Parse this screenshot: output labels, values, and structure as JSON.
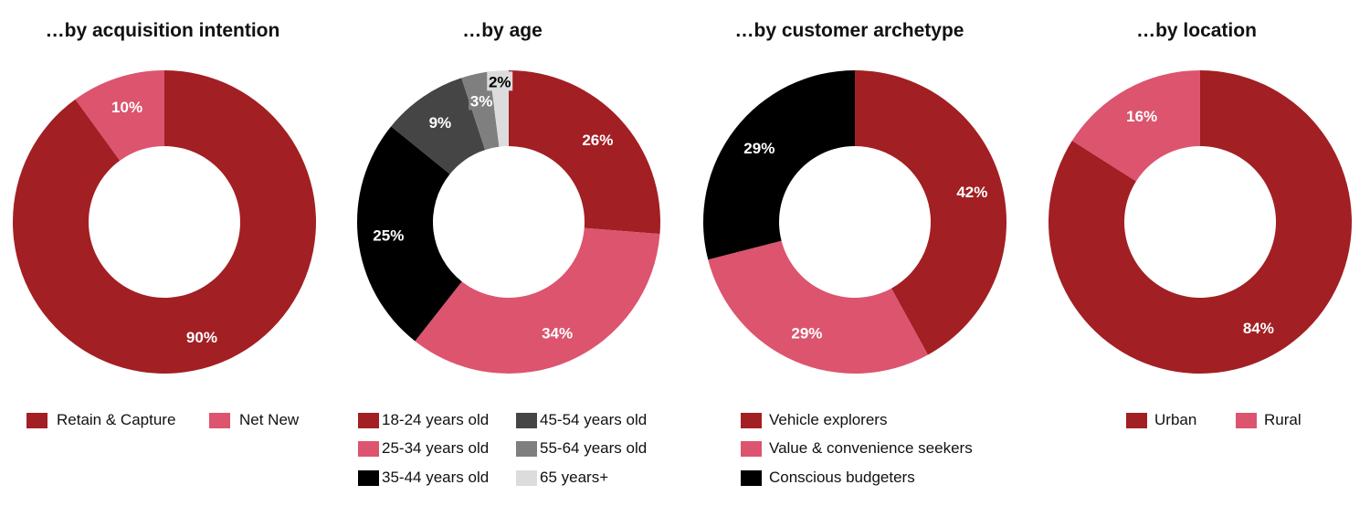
{
  "colors": {
    "dark_red": "#A21F23",
    "pink": "#DC546D",
    "black": "#000000",
    "dark_gray": "#454545",
    "mid_gray": "#7F7F7F",
    "light_gray": "#DCDCDC"
  },
  "chart_data": [
    {
      "type": "pie",
      "title": "…by acquisition intention",
      "categories": [
        "Retain & Capture",
        "Net New"
      ],
      "values": [
        90,
        10
      ],
      "labels": [
        "90%",
        "10%"
      ],
      "colors": [
        "#A21F23",
        "#DC546D"
      ],
      "legend": "bottom"
    },
    {
      "type": "pie",
      "title": "…by age",
      "categories": [
        "18-24 years old",
        "25-34 years old",
        "35-44 years old",
        "45-54 years old",
        "55-64 years old",
        "65 years+"
      ],
      "values": [
        26,
        34,
        25,
        9,
        3,
        2
      ],
      "labels": [
        "26%",
        "34%",
        "25%",
        "9%",
        "3%",
        "2%"
      ],
      "colors": [
        "#A21F23",
        "#DC546D",
        "#000000",
        "#454545",
        "#7F7F7F",
        "#DCDCDC"
      ],
      "legend": "bottom"
    },
    {
      "type": "pie",
      "title": "…by customer archetype",
      "categories": [
        "Vehicle explorers",
        "Value & convenience seekers",
        "Conscious budgeters"
      ],
      "values": [
        42,
        29,
        29
      ],
      "labels": [
        "42%",
        "29%",
        "29%"
      ],
      "colors": [
        "#A21F23",
        "#DC546D",
        "#000000"
      ],
      "legend": "bottom"
    },
    {
      "type": "pie",
      "title": "…by location",
      "categories": [
        "Urban",
        "Rural"
      ],
      "values": [
        84,
        16
      ],
      "labels": [
        "84%",
        "16%"
      ],
      "colors": [
        "#A21F23",
        "#DC546D"
      ],
      "legend": "bottom"
    }
  ]
}
